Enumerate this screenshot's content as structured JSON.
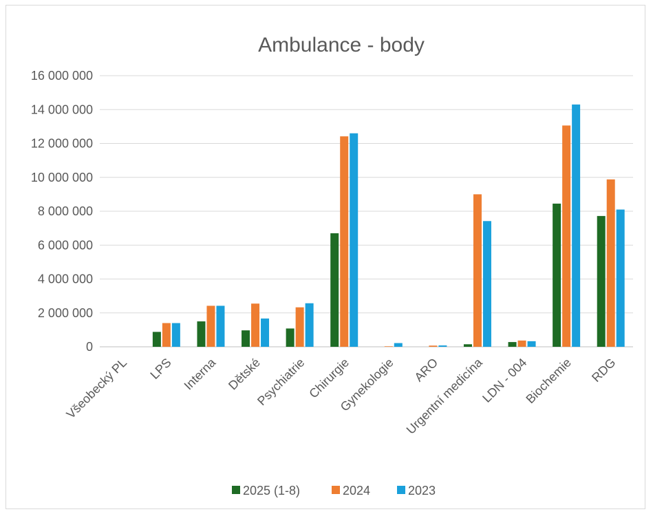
{
  "chart_data": {
    "type": "bar",
    "title": "Ambulance - body",
    "xlabel": "",
    "ylabel": "",
    "ylim": [
      0,
      16000000
    ],
    "y_ticks": [
      0,
      2000000,
      4000000,
      6000000,
      8000000,
      10000000,
      12000000,
      14000000,
      16000000
    ],
    "y_tick_labels": [
      "0",
      "2 000 000",
      "4 000 000",
      "6 000 000",
      "8 000 000",
      "10 000 000",
      "12 000 000",
      "14 000 000",
      "16 000 000"
    ],
    "categories": [
      "Všeobecký PL",
      "LPS",
      "Interna",
      "Dětské",
      "Psychiatrie",
      "Chirurgie",
      "Gynekologie",
      "ARO",
      "Urgentní medicína",
      "LDN - 004",
      "Biochemie",
      "RDG"
    ],
    "series": [
      {
        "name": "2025 (1-8)",
        "color": "#1e6b24",
        "values": [
          0,
          880000,
          1500000,
          970000,
          1080000,
          6700000,
          0,
          0,
          150000,
          280000,
          8450000,
          7720000
        ]
      },
      {
        "name": "2024",
        "color": "#ee7d31",
        "values": [
          0,
          1400000,
          2420000,
          2550000,
          2330000,
          12420000,
          30000,
          70000,
          9000000,
          370000,
          13060000,
          9880000
        ]
      },
      {
        "name": "2023",
        "color": "#1aa0db",
        "values": [
          0,
          1400000,
          2420000,
          1670000,
          2570000,
          12600000,
          220000,
          80000,
          7420000,
          330000,
          14300000,
          8100000
        ]
      }
    ],
    "grid": true,
    "legend_position": "bottom"
  }
}
